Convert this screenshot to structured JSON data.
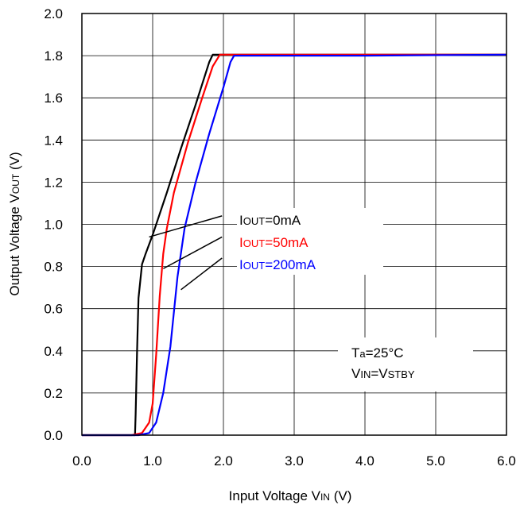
{
  "chart_data": {
    "type": "line",
    "xlabel": "Input Voltage VIN (V)",
    "ylabel": "Output Voltage VOUT (V)",
    "xlim": [
      0,
      6
    ],
    "ylim": [
      0,
      2
    ],
    "xticks": [
      "0.0",
      "1.0",
      "2.0",
      "3.0",
      "4.0",
      "5.0",
      "6.0"
    ],
    "yticks": [
      "0.0",
      "0.2",
      "0.4",
      "0.6",
      "0.8",
      "1.0",
      "1.2",
      "1.4",
      "1.6",
      "1.8",
      "2.0"
    ],
    "grid": true,
    "series": [
      {
        "name": "IOUT=0mA",
        "color": "#000000",
        "x": [
          0.0,
          0.75,
          0.76,
          0.78,
          0.8,
          0.85,
          0.9,
          1.0,
          1.2,
          1.4,
          1.6,
          1.8,
          1.85,
          2.0,
          4.0,
          6.0
        ],
        "y": [
          0.0,
          0.0,
          0.1,
          0.4,
          0.65,
          0.81,
          0.86,
          0.95,
          1.15,
          1.36,
          1.56,
          1.77,
          1.805,
          1.805,
          1.805,
          1.805
        ]
      },
      {
        "name": "IOUT=50mA",
        "color": "#ff0000",
        "x": [
          0.0,
          0.7,
          0.85,
          0.95,
          1.0,
          1.05,
          1.1,
          1.15,
          1.2,
          1.3,
          1.5,
          1.7,
          1.85,
          1.95,
          2.0,
          4.0,
          6.0
        ],
        "y": [
          0.0,
          0.0,
          0.01,
          0.06,
          0.15,
          0.38,
          0.66,
          0.86,
          0.98,
          1.15,
          1.39,
          1.6,
          1.75,
          1.805,
          1.805,
          1.805,
          1.805
        ]
      },
      {
        "name": "IOUT=200mA",
        "color": "#0000ff",
        "x": [
          0.0,
          0.8,
          0.95,
          1.05,
          1.15,
          1.25,
          1.35,
          1.45,
          1.6,
          1.8,
          2.0,
          2.1,
          2.15,
          4.0,
          6.0
        ],
        "y": [
          0.0,
          0.0,
          0.01,
          0.06,
          0.2,
          0.42,
          0.75,
          0.98,
          1.19,
          1.43,
          1.65,
          1.77,
          1.8,
          1.8,
          1.805
        ]
      }
    ],
    "annotations": [
      {
        "sub": "OUT",
        "text": "=0mA",
        "color": "#000000"
      },
      {
        "sub": "OUT",
        "text": "=50mA",
        "color": "#ff0000"
      },
      {
        "sub": "OUT",
        "text": "=200mA",
        "color": "#0000ff"
      }
    ],
    "conditions": [
      "Ta=25°C",
      "VIN=VSTBY"
    ]
  }
}
